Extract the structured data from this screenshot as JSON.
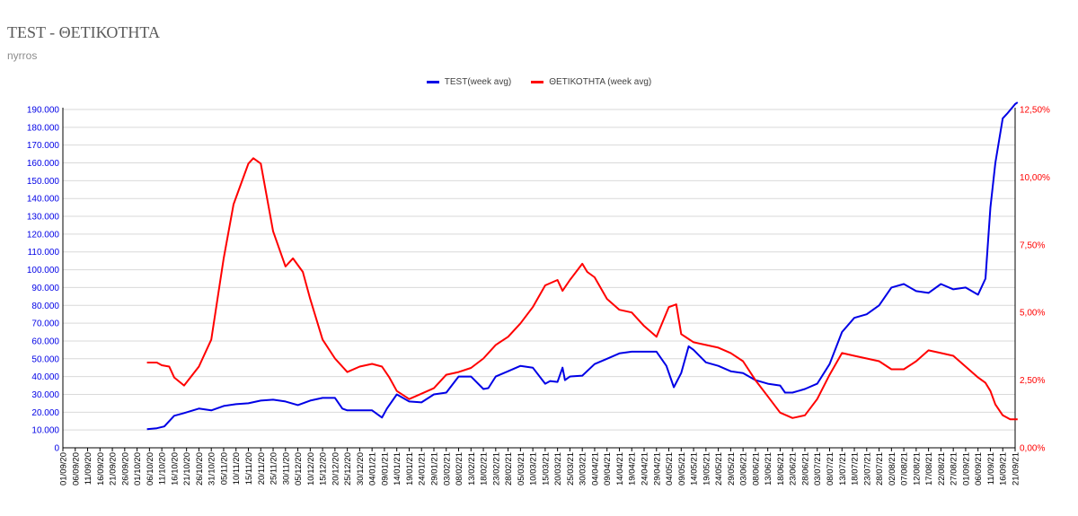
{
  "title": "TEST - ΘΕΤΙΚΟΤΗΤΑ",
  "subtitle": "nyrros",
  "colors": {
    "test": "#0000e6",
    "positivity": "#ff0000",
    "grid": "#d9d9d9",
    "axis": "#000000"
  },
  "chart_data": {
    "type": "line",
    "title": "TEST - ΘΕΤΙΚΟΤΗΤΑ",
    "subtitle": "nyrros",
    "legend_position": "top",
    "grid": true,
    "x_ticks": [
      "01/09/20",
      "06/09/20",
      "11/09/20",
      "16/09/20",
      "21/09/20",
      "26/09/20",
      "01/10/20",
      "06/10/20",
      "11/10/20",
      "16/10/20",
      "21/10/20",
      "26/10/20",
      "31/10/20",
      "05/11/20",
      "10/11/20",
      "15/11/20",
      "20/11/20",
      "25/11/20",
      "30/11/20",
      "05/12/20",
      "10/12/20",
      "15/12/20",
      "20/12/20",
      "25/12/20",
      "30/12/20",
      "04/01/21",
      "09/01/21",
      "14/01/21",
      "19/01/21",
      "24/01/21",
      "29/01/21",
      "03/02/21",
      "08/02/21",
      "13/02/21",
      "18/02/21",
      "23/02/21",
      "28/02/21",
      "05/03/21",
      "10/03/21",
      "15/03/21",
      "20/03/21",
      "25/03/21",
      "30/03/21",
      "04/04/21",
      "09/04/21",
      "14/04/21",
      "19/04/21",
      "24/04/21",
      "29/04/21",
      "04/05/21",
      "09/05/21",
      "14/05/21",
      "19/05/21",
      "24/05/21",
      "29/05/21",
      "03/06/21",
      "08/06/21",
      "13/06/21",
      "18/06/21",
      "23/06/21",
      "28/06/21",
      "03/07/21",
      "08/07/21",
      "13/07/21",
      "18/07/21",
      "23/07/21",
      "28/07/21",
      "02/08/21",
      "07/08/21",
      "12/08/21",
      "17/08/21",
      "22/08/21",
      "27/08/21",
      "01/09/21",
      "06/09/21",
      "11/09/21",
      "16/09/21",
      "21/09/21"
    ],
    "y_left": {
      "min": 0,
      "max": 190000,
      "step": 10000,
      "tick_labels": [
        "0",
        "10.000",
        "20.000",
        "30.000",
        "40.000",
        "50.000",
        "60.000",
        "70.000",
        "80.000",
        "90.000",
        "100.000",
        "110.000",
        "120.000",
        "130.000",
        "140.000",
        "150.000",
        "160.000",
        "170.000",
        "180.000",
        "190.000"
      ]
    },
    "y_right": {
      "min": 0,
      "max": 12.5,
      "step": 2.5,
      "tick_labels": [
        "0,00%",
        "2,50%",
        "5,00%",
        "7,50%",
        "10,00%",
        "12,50%"
      ]
    },
    "series": [
      {
        "name": "TEST(week avg)",
        "axis": "left",
        "x": [
          "05/10/20",
          "09/10/20",
          "12/10/20",
          "16/10/20",
          "20/10/20",
          "26/10/20",
          "31/10/20",
          "05/11/20",
          "10/11/20",
          "15/11/20",
          "20/11/20",
          "25/11/20",
          "30/11/20",
          "05/12/20",
          "10/12/20",
          "15/12/20",
          "20/12/20",
          "23/12/20",
          "25/12/20",
          "30/12/20",
          "04/01/21",
          "08/01/21",
          "10/01/21",
          "14/01/21",
          "19/01/21",
          "24/01/21",
          "29/01/21",
          "03/02/21",
          "08/02/21",
          "13/02/21",
          "18/02/21",
          "20/02/21",
          "23/02/21",
          "28/02/21",
          "05/03/21",
          "10/03/21",
          "15/03/21",
          "17/03/21",
          "20/03/21",
          "22/03/21",
          "23/03/21",
          "25/03/21",
          "30/03/21",
          "04/04/21",
          "09/04/21",
          "14/04/21",
          "19/04/21",
          "24/04/21",
          "29/04/21",
          "03/05/21",
          "06/05/21",
          "09/05/21",
          "12/05/21",
          "14/05/21",
          "19/05/21",
          "24/05/21",
          "29/05/21",
          "03/06/21",
          "08/06/21",
          "13/06/21",
          "18/06/21",
          "20/06/21",
          "23/06/21",
          "28/06/21",
          "03/07/21",
          "08/07/21",
          "13/07/21",
          "18/07/21",
          "23/07/21",
          "28/07/21",
          "02/08/21",
          "07/08/21",
          "12/08/21",
          "17/08/21",
          "22/08/21",
          "27/08/21",
          "01/09/21",
          "06/09/21",
          "09/09/21",
          "11/09/21",
          "13/09/21",
          "16/09/21",
          "18/09/21",
          "21/09/21",
          "22/09/21"
        ],
        "values": [
          10500,
          11000,
          12000,
          18000,
          19500,
          22000,
          21000,
          23500,
          24500,
          25000,
          26500,
          27000,
          26000,
          24000,
          26500,
          28000,
          28000,
          22000,
          21000,
          21000,
          21000,
          17000,
          22000,
          30000,
          26000,
          25500,
          30000,
          31000,
          40000,
          40000,
          33000,
          33500,
          40000,
          43000,
          46000,
          45000,
          36000,
          37500,
          37000,
          45000,
          38000,
          40000,
          40500,
          47000,
          50000,
          53000,
          54000,
          54000,
          54000,
          46000,
          34000,
          42000,
          57000,
          55000,
          48000,
          46000,
          43000,
          42000,
          38000,
          36000,
          35000,
          31000,
          31000,
          33000,
          36000,
          47000,
          65000,
          73000,
          75000,
          80000,
          90000,
          92000,
          88000,
          87000,
          92000,
          89000,
          90000,
          86000,
          95000,
          135000,
          160000,
          185000,
          188000,
          193000,
          194000
        ]
      },
      {
        "name": "ΘΕΤΙΚΟΤΗΤΑ (week avg)",
        "axis": "right",
        "x": [
          "05/10/20",
          "09/10/20",
          "11/10/20",
          "14/10/20",
          "16/10/20",
          "20/10/20",
          "26/10/20",
          "31/10/20",
          "05/11/20",
          "09/11/20",
          "13/11/20",
          "15/11/20",
          "17/11/20",
          "20/11/20",
          "25/11/20",
          "30/11/20",
          "03/12/20",
          "07/12/20",
          "10/12/20",
          "15/12/20",
          "20/12/20",
          "25/12/20",
          "30/12/20",
          "04/01/21",
          "08/01/21",
          "11/01/21",
          "14/01/21",
          "19/01/21",
          "24/01/21",
          "29/01/21",
          "03/02/21",
          "08/02/21",
          "13/02/21",
          "18/02/21",
          "23/02/21",
          "28/02/21",
          "05/03/21",
          "10/03/21",
          "15/03/21",
          "20/03/21",
          "22/03/21",
          "25/03/21",
          "30/03/21",
          "01/04/21",
          "04/04/21",
          "09/04/21",
          "14/04/21",
          "19/04/21",
          "24/04/21",
          "29/04/21",
          "04/05/21",
          "07/05/21",
          "09/05/21",
          "14/05/21",
          "19/05/21",
          "24/05/21",
          "29/05/21",
          "03/06/21",
          "08/06/21",
          "13/06/21",
          "18/06/21",
          "23/06/21",
          "28/06/21",
          "03/07/21",
          "08/07/21",
          "13/07/21",
          "18/07/21",
          "23/07/21",
          "28/07/21",
          "02/08/21",
          "07/08/21",
          "12/08/21",
          "17/08/21",
          "22/08/21",
          "27/08/21",
          "01/09/21",
          "06/09/21",
          "09/09/21",
          "11/09/21",
          "13/09/21",
          "16/09/21",
          "19/09/21",
          "22/09/21"
        ],
        "values": [
          3.15,
          3.15,
          3.05,
          3.0,
          2.6,
          2.3,
          3.0,
          4.0,
          7.0,
          9.0,
          10.0,
          10.5,
          10.7,
          10.5,
          8.0,
          6.7,
          7.0,
          6.5,
          5.5,
          4.0,
          3.3,
          2.8,
          3.0,
          3.1,
          3.0,
          2.6,
          2.1,
          1.8,
          2.0,
          2.2,
          2.7,
          2.8,
          2.95,
          3.3,
          3.8,
          4.1,
          4.6,
          5.2,
          6.0,
          6.2,
          5.8,
          6.2,
          6.8,
          6.5,
          6.3,
          5.5,
          5.1,
          5.0,
          4.5,
          4.1,
          5.2,
          5.3,
          4.2,
          3.9,
          3.8,
          3.7,
          3.5,
          3.2,
          2.5,
          1.9,
          1.3,
          1.1,
          1.2,
          1.8,
          2.7,
          3.5,
          3.4,
          3.3,
          3.2,
          2.9,
          2.9,
          3.2,
          3.6,
          3.5,
          3.4,
          3.0,
          2.6,
          2.4,
          2.1,
          1.6,
          1.2,
          1.05,
          1.05
        ]
      }
    ]
  }
}
